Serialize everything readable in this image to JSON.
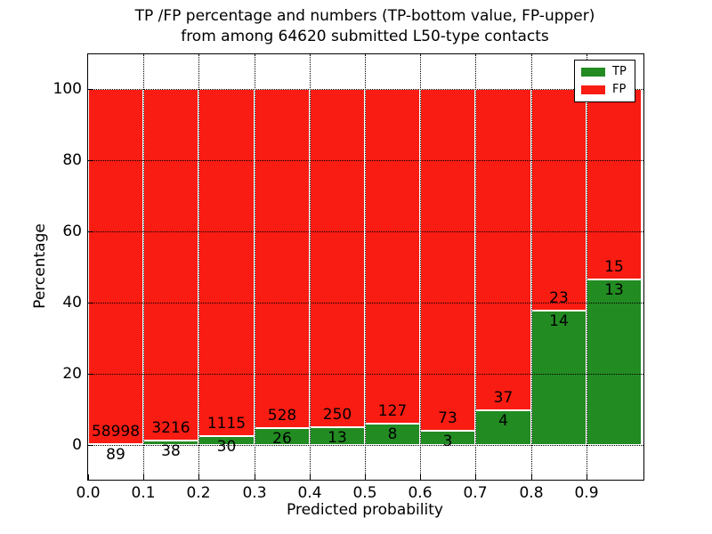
{
  "chart_data": {
    "type": "bar",
    "stacked": true,
    "normalized_to_percent": true,
    "title_lines": [
      "TP /FP percentage and numbers (TP-bottom value, FP-upper)",
      "from among 64620 submitted L50-type contacts"
    ],
    "xlabel": "Predicted probability",
    "ylabel": "Percentage",
    "total_submitted": 64620,
    "bins": [
      "0.0-0.1",
      "0.1-0.2",
      "0.2-0.3",
      "0.3-0.4",
      "0.4-0.5",
      "0.5-0.6",
      "0.6-0.7",
      "0.7-0.8",
      "0.8-0.9",
      "0.9-1.0"
    ],
    "x_ticks": [
      "0.0",
      "0.1",
      "0.2",
      "0.3",
      "0.4",
      "0.5",
      "0.6",
      "0.7",
      "0.8",
      "0.9"
    ],
    "y_ticks": [
      "0",
      "20",
      "40",
      "60",
      "80",
      "100"
    ],
    "y_tick_values": [
      0,
      20,
      40,
      60,
      80,
      100
    ],
    "ylim": [
      0,
      100
    ],
    "grid": true,
    "legend_position": "upper right",
    "bar_edge_color": "#ffffff",
    "series": [
      {
        "name": "TP",
        "color": "#228b22",
        "counts": [
          89,
          38,
          30,
          26,
          13,
          8,
          3,
          4,
          14,
          13
        ],
        "percent_of_bin": [
          0.15,
          1.17,
          2.62,
          4.69,
          4.94,
          5.93,
          3.95,
          9.76,
          37.84,
          46.43
        ]
      },
      {
        "name": "FP",
        "color": "#f91c12",
        "counts": [
          58998,
          3216,
          1115,
          528,
          250,
          127,
          73,
          37,
          23,
          15
        ],
        "percent_of_bin": [
          99.85,
          98.83,
          97.38,
          95.31,
          95.06,
          94.07,
          96.05,
          90.24,
          62.16,
          53.57
        ]
      }
    ]
  }
}
